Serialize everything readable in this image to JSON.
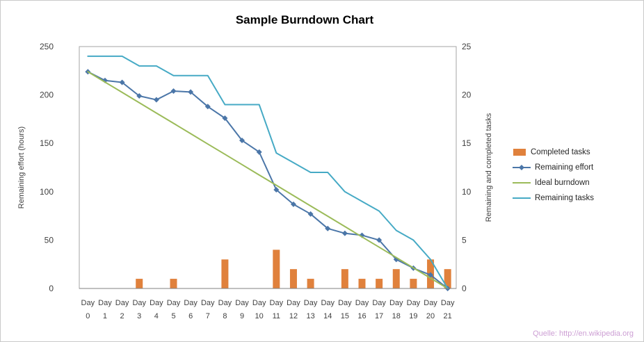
{
  "page": {
    "source_note": "Quelle: http://en.wikipedia.org"
  },
  "chart_data": {
    "type": "combo",
    "title": "Sample Burndown Chart",
    "categories": [
      "Day 0",
      "Day 1",
      "Day 2",
      "Day 3",
      "Day 4",
      "Day 5",
      "Day 6",
      "Day 7",
      "Day 8",
      "Day 9",
      "Day 10",
      "Day 11",
      "Day 12",
      "Day 13",
      "Day 14",
      "Day 15",
      "Day 16",
      "Day 17",
      "Day 18",
      "Day 19",
      "Day 20",
      "Day 21"
    ],
    "left_axis": {
      "title": "Remaining effort (hours)",
      "min": 0,
      "max": 250,
      "ticks": [
        0,
        50,
        100,
        150,
        200,
        250
      ]
    },
    "right_axis": {
      "title": "Remaining and completed tasks",
      "min": 0,
      "max": 25,
      "ticks": [
        0,
        5,
        10,
        15,
        20,
        25
      ]
    },
    "grid": false,
    "legend_position": "right",
    "series": [
      {
        "name": "Completed tasks",
        "type": "bar",
        "axis": "right",
        "color": "#E0813C",
        "values": [
          0,
          0,
          0,
          1,
          0,
          1,
          0,
          0,
          3,
          0,
          0,
          4,
          2,
          1,
          0,
          2,
          1,
          1,
          2,
          1,
          3,
          2
        ]
      },
      {
        "name": "Remaining effort",
        "type": "line",
        "marker": "diamond",
        "axis": "left",
        "color": "#4B76A8",
        "values": [
          224,
          215,
          213,
          199,
          195,
          204,
          203,
          188,
          176,
          153,
          141,
          102,
          87,
          77,
          62,
          57,
          55,
          50,
          30,
          21,
          14,
          0
        ]
      },
      {
        "name": "Ideal burndown",
        "type": "line",
        "axis": "left",
        "color": "#9BBB59",
        "values": [
          224,
          213.3,
          202.7,
          192,
          181.3,
          170.7,
          160,
          149.3,
          138.7,
          128,
          117.3,
          106.7,
          96,
          85.3,
          74.7,
          64,
          53.3,
          42.7,
          32,
          21.3,
          10.7,
          0
        ]
      },
      {
        "name": "Remaining tasks",
        "type": "line",
        "axis": "right",
        "color": "#46AAC5",
        "values": [
          24,
          24,
          24,
          23,
          23,
          22,
          22,
          22,
          19,
          19,
          19,
          14,
          13,
          12,
          12,
          10,
          9,
          8,
          6,
          5,
          3,
          0
        ]
      }
    ],
    "colors": {
      "plot_border": "#A6A6A6",
      "axis_line": "#808080",
      "tick_text": "#3F3F3F",
      "title_text": "#000000",
      "source_text": "#CD9FD4"
    }
  }
}
